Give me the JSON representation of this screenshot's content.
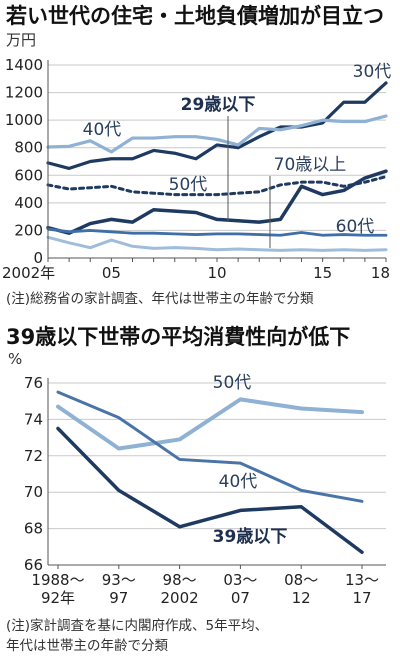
{
  "chart_data": [
    {
      "type": "line",
      "title": "若い世代の住宅・土地負債増加が目立つ",
      "ylabel": "万円",
      "xlim": [
        2002,
        2018
      ],
      "ylim": [
        0,
        1400
      ],
      "yticks": [
        0,
        200,
        400,
        600,
        800,
        1000,
        1200,
        1400
      ],
      "xticks": [
        {
          "value": 2002,
          "label": "2002年"
        },
        {
          "value": 2005,
          "label": "05"
        },
        {
          "value": 2010,
          "label": "10"
        },
        {
          "value": 2015,
          "label": "15"
        },
        {
          "value": 2018,
          "label": "18"
        }
      ],
      "grid": true,
      "note": "(注)総務省の家計調査、年代は世帯主の年齢で分類",
      "x": [
        2002,
        2003,
        2004,
        2005,
        2006,
        2007,
        2008,
        2009,
        2010,
        2011,
        2012,
        2013,
        2014,
        2015,
        2016,
        2017,
        2018
      ],
      "series": [
        {
          "name": "30代",
          "color": "#1f3a60",
          "width": 3.2,
          "dash": "",
          "values": [
            690,
            650,
            700,
            720,
            720,
            780,
            760,
            720,
            820,
            800,
            880,
            950,
            950,
            980,
            1130,
            1130,
            1270
          ]
        },
        {
          "name": "40代",
          "color": "#8fb1d3",
          "width": 3.2,
          "dash": "",
          "values": [
            805,
            810,
            850,
            770,
            870,
            870,
            880,
            880,
            860,
            820,
            940,
            930,
            960,
            1000,
            990,
            990,
            1030
          ]
        },
        {
          "name": "50代",
          "color": "#1f3a60",
          "width": 3,
          "dash": "4 4",
          "values": [
            530,
            500,
            510,
            520,
            480,
            470,
            460,
            460,
            460,
            470,
            480,
            530,
            550,
            550,
            520,
            550,
            590
          ]
        },
        {
          "name": "29歳以下",
          "color": "#1f3a60",
          "width": 3.5,
          "dash": "",
          "values": [
            220,
            180,
            250,
            280,
            260,
            350,
            340,
            330,
            280,
            270,
            260,
            280,
            520,
            460,
            490,
            580,
            630
          ]
        },
        {
          "name": "60代",
          "color": "#3f6fa8",
          "width": 2.8,
          "dash": "",
          "values": [
            210,
            190,
            200,
            190,
            180,
            180,
            175,
            170,
            175,
            175,
            170,
            165,
            185,
            165,
            170,
            165,
            165
          ]
        },
        {
          "name": "70歳以上",
          "color": "#9fbddb",
          "width": 3,
          "dash": "",
          "values": [
            150,
            110,
            75,
            130,
            85,
            70,
            75,
            70,
            60,
            65,
            60,
            55,
            60,
            55,
            60,
            55,
            60
          ]
        }
      ],
      "labels": [
        {
          "series": "30代",
          "text": "30代",
          "bold": false
        },
        {
          "series": "40代",
          "text": "40代",
          "bold": false
        },
        {
          "series": "50代",
          "text": "50代",
          "bold": false
        },
        {
          "series": "29歳以下",
          "text": "29歳以下",
          "bold": true
        },
        {
          "series": "60代",
          "text": "60代",
          "bold": false
        },
        {
          "series": "70歳以上",
          "text": "70歳以上",
          "bold": false
        }
      ]
    },
    {
      "type": "line",
      "title": "39歳以下世帯の平均消費性向が低下",
      "ylabel": "%",
      "xlim": [
        0,
        5
      ],
      "ylim": [
        66,
        76
      ],
      "yticks": [
        66,
        68,
        70,
        72,
        74,
        76
      ],
      "categories": [
        "1988〜92年",
        "93〜97",
        "98〜2002",
        "03〜07",
        "08〜12",
        "13〜17"
      ],
      "grid": true,
      "note": "(注)家計調査を基に内閣府作成、5年平均、年代は世帯主の年齢で分類",
      "series": [
        {
          "name": "50代",
          "color": "#8fb1d3",
          "width": 4,
          "dash": "",
          "values": [
            74.7,
            72.4,
            72.9,
            75.1,
            74.6,
            74.4
          ]
        },
        {
          "name": "40代",
          "color": "#4a74a8",
          "width": 3,
          "dash": "",
          "values": [
            75.5,
            74.1,
            71.8,
            71.6,
            70.1,
            69.5
          ]
        },
        {
          "name": "39歳以下",
          "color": "#1f3a60",
          "width": 3.5,
          "dash": "",
          "values": [
            73.5,
            70.1,
            68.1,
            69.0,
            69.2,
            66.7
          ]
        }
      ],
      "labels": [
        {
          "series": "50代",
          "text": "50代",
          "bold": false
        },
        {
          "series": "40代",
          "text": "40代",
          "bold": false
        },
        {
          "series": "39歳以下",
          "text": "39歳以下",
          "bold": true
        }
      ]
    }
  ]
}
